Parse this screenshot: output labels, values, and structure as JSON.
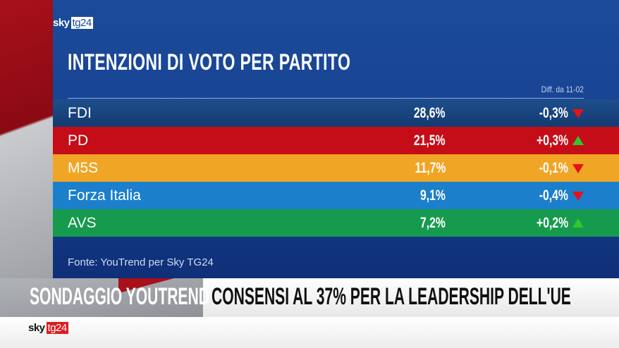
{
  "brand": {
    "sky": "sky",
    "tg": "tg24"
  },
  "title": "INTENZIONI DI VOTO PER PARTITO",
  "diff_header": "Diff. da 11-02",
  "rows": [
    {
      "party": "FDI",
      "value": "28,6%",
      "diff": "-0,3%",
      "trend": "down",
      "color": "#173e7a"
    },
    {
      "party": "PD",
      "value": "21,5%",
      "diff": "+0,3%",
      "trend": "up",
      "color": "#c50d17"
    },
    {
      "party": "M5S",
      "value": "11,7%",
      "diff": "-0,1%",
      "trend": "down",
      "color": "#f1a525"
    },
    {
      "party": "Forza Italia",
      "value": "9,1%",
      "diff": "-0,4%",
      "trend": "down",
      "color": "#1b7fcc"
    },
    {
      "party": "AVS",
      "value": "7,2%",
      "diff": "+0,2%",
      "trend": "up",
      "color": "#169a4e"
    }
  ],
  "source": "Fonte: YouTrend per Sky TG24",
  "banner": {
    "kicker": "SONDAGGIO YOUTREND",
    "headline": "CONSENSI AL 37% PER LA LEADERSHIP DELL'UE"
  }
}
